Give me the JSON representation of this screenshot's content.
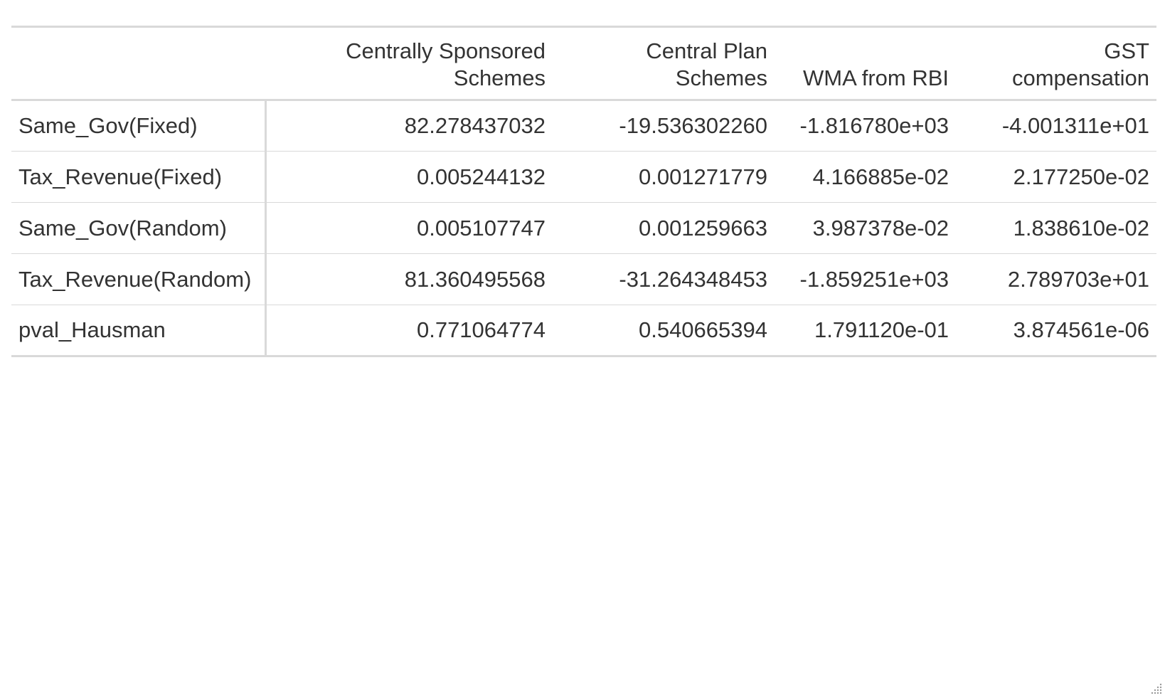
{
  "table": {
    "columns": [
      {
        "header": ""
      },
      {
        "header": "Centrally Sponsored Schemes"
      },
      {
        "header": "Central Plan Schemes"
      },
      {
        "header": "WMA from RBI"
      },
      {
        "header": "GST compensation"
      }
    ],
    "rows": [
      {
        "label": "Same_Gov(Fixed)",
        "values": [
          "82.278437032",
          "-19.536302260",
          "-1.816780e+03",
          "-4.001311e+01"
        ]
      },
      {
        "label": "Tax_Revenue(Fixed)",
        "values": [
          "0.005244132",
          "0.001271779",
          "4.166885e-02",
          "2.177250e-02"
        ]
      },
      {
        "label": "Same_Gov(Random)",
        "values": [
          "0.005107747",
          "0.001259663",
          "3.987378e-02",
          "1.838610e-02"
        ]
      },
      {
        "label": "Tax_Revenue(Random)",
        "values": [
          "81.360495568",
          "-31.264348453",
          "-1.859251e+03",
          "2.789703e+01"
        ]
      },
      {
        "label": "pval_Hausman",
        "values": [
          "0.771064774",
          "0.540665394",
          "1.791120e-01",
          "3.874561e-06"
        ]
      }
    ]
  },
  "icons": {
    "resize_grip": "resize-grip-icon"
  },
  "colors": {
    "text": "#333333",
    "rule": "#d9d9d9",
    "background": "#ffffff"
  }
}
